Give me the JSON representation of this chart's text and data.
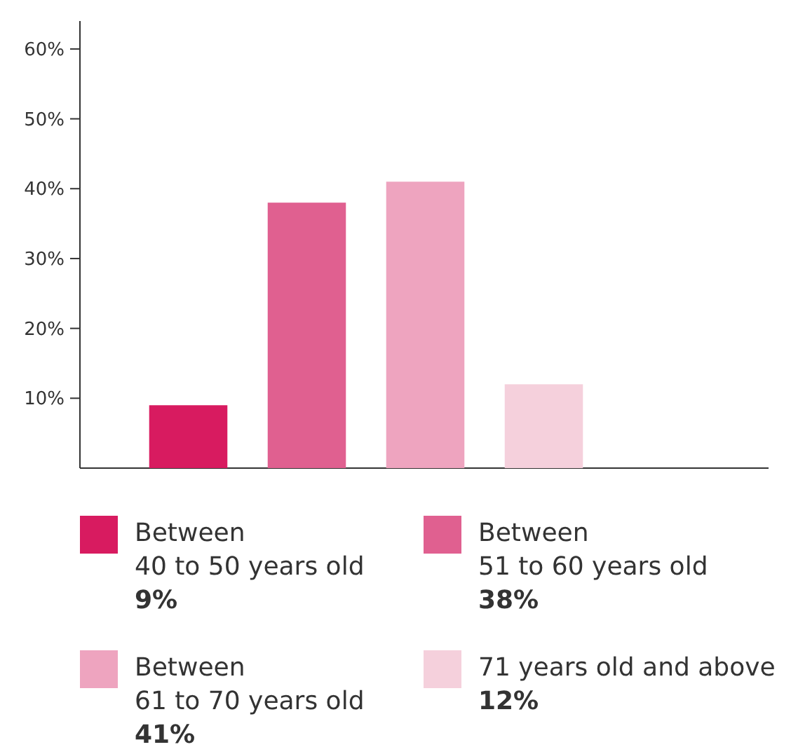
{
  "chart_data": {
    "type": "bar",
    "categories": [
      null,
      null,
      null,
      null
    ],
    "stacked": true,
    "series": [
      {
        "name": "Between\n40 to 50 years old",
        "color": "#d81b60",
        "values": [
          9,
          null,
          null,
          null
        ]
      },
      {
        "name": "Between\n51 to 60 years old",
        "color": "#e06090",
        "values": [
          null,
          38,
          null,
          null
        ]
      },
      {
        "name": "Between\n61 to 70 years old",
        "color": "#eea4bf",
        "values": [
          null,
          null,
          41,
          null
        ]
      },
      {
        "name": "71 years old and above",
        "color": "#f5d0dc",
        "values": [
          null,
          null,
          null,
          12
        ]
      }
    ],
    "annotations": [
      "9%",
      "38%",
      "41%",
      "12%"
    ],
    "ylim": [
      0,
      64
    ],
    "yticks": [
      {
        "value": 10,
        "label": "10%"
      },
      {
        "value": 20,
        "label": "20%"
      },
      {
        "value": 30,
        "label": "30%"
      },
      {
        "value": 40,
        "label": "40%"
      },
      {
        "value": 50,
        "label": "50%"
      },
      {
        "value": 60,
        "label": "60%"
      }
    ],
    "legend": "bottom"
  }
}
